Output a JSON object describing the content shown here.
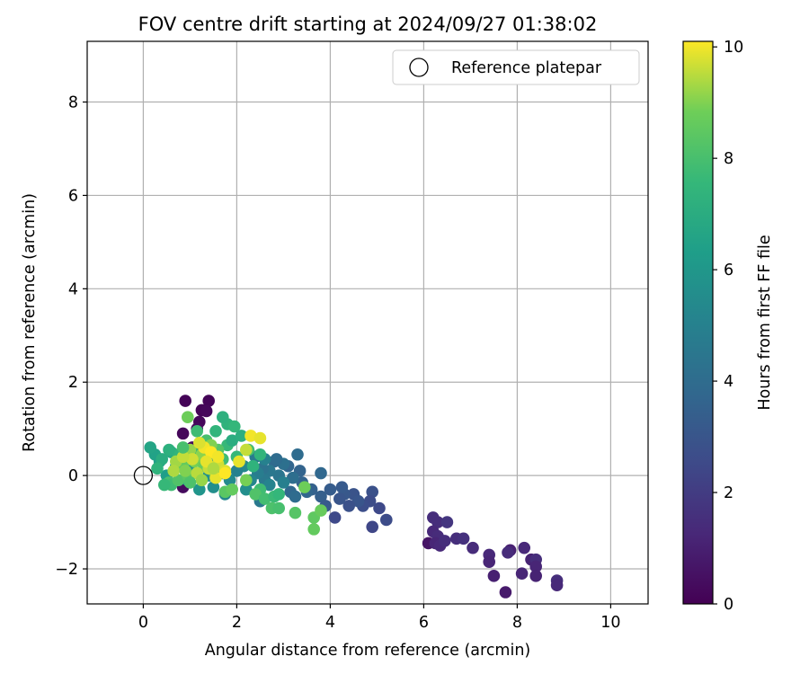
{
  "chart_data": {
    "type": "scatter",
    "title": "FOV centre drift starting at 2024/09/27 01:38:02",
    "xlabel": "Angular distance from reference (arcmin)",
    "ylabel": "Rotation from reference (arcmin)",
    "xlim": [
      -1.2,
      10.8
    ],
    "ylim": [
      -2.75,
      9.3
    ],
    "xticks": [
      0,
      2,
      4,
      6,
      8,
      10
    ],
    "yticks": [
      -2,
      0,
      2,
      4,
      6,
      8
    ],
    "xtick_labels": [
      "0",
      "2",
      "4",
      "6",
      "8",
      "10"
    ],
    "ytick_labels": [
      "−2",
      "0",
      "2",
      "4",
      "6",
      "8"
    ],
    "grid": true,
    "legend": {
      "position": "upper-right",
      "entries": [
        "Reference platepar"
      ]
    },
    "reference_point": {
      "label": "Reference platepar",
      "x": 0,
      "y": 0
    },
    "colorbar": {
      "label": "Hours from first FF file",
      "min": 0,
      "max": 10.1,
      "ticks": [
        0,
        2,
        4,
        6,
        8,
        10
      ],
      "tick_labels": [
        "0",
        "2",
        "4",
        "6",
        "8",
        "10"
      ],
      "colormap": "viridis"
    },
    "points": [
      {
        "x": 0.9,
        "y": 1.6,
        "c": 0.1
      },
      {
        "x": 1.4,
        "y": 1.6,
        "c": 0.1
      },
      {
        "x": 1.25,
        "y": 1.4,
        "c": 0.1
      },
      {
        "x": 1.35,
        "y": 1.38,
        "c": 0.2
      },
      {
        "x": 1.2,
        "y": 1.15,
        "c": 0.2
      },
      {
        "x": 0.85,
        "y": 0.9,
        "c": 0.2
      },
      {
        "x": 1.15,
        "y": 1.0,
        "c": 0.3
      },
      {
        "x": 1.05,
        "y": 0.6,
        "c": 0.3
      },
      {
        "x": 0.85,
        "y": -0.25,
        "c": 0.3
      },
      {
        "x": 1.25,
        "y": 0.3,
        "c": 0.4
      },
      {
        "x": 6.1,
        "y": -1.45,
        "c": 0.6
      },
      {
        "x": 7.75,
        "y": -2.5,
        "c": 0.8
      },
      {
        "x": 7.85,
        "y": -1.6,
        "c": 1.0
      },
      {
        "x": 7.5,
        "y": -2.15,
        "c": 1.0
      },
      {
        "x": 6.2,
        "y": -0.9,
        "c": 1.5
      },
      {
        "x": 6.3,
        "y": -1.0,
        "c": 1.5
      },
      {
        "x": 6.5,
        "y": -1.0,
        "c": 1.8
      },
      {
        "x": 6.2,
        "y": -1.2,
        "c": 1.3
      },
      {
        "x": 6.3,
        "y": -1.3,
        "c": 1.4
      },
      {
        "x": 6.25,
        "y": -1.45,
        "c": 1.2
      },
      {
        "x": 6.35,
        "y": -1.5,
        "c": 1.3
      },
      {
        "x": 6.45,
        "y": -1.4,
        "c": 1.5
      },
      {
        "x": 6.7,
        "y": -1.35,
        "c": 1.5
      },
      {
        "x": 6.85,
        "y": -1.35,
        "c": 1.6
      },
      {
        "x": 7.05,
        "y": -1.55,
        "c": 1.4
      },
      {
        "x": 7.4,
        "y": -1.7,
        "c": 1.3
      },
      {
        "x": 7.4,
        "y": -1.85,
        "c": 1.2
      },
      {
        "x": 7.8,
        "y": -1.65,
        "c": 1.4
      },
      {
        "x": 8.15,
        "y": -1.55,
        "c": 1.3
      },
      {
        "x": 8.3,
        "y": -1.8,
        "c": 1.1
      },
      {
        "x": 8.4,
        "y": -1.8,
        "c": 1.5
      },
      {
        "x": 8.4,
        "y": -1.95,
        "c": 1.2
      },
      {
        "x": 8.4,
        "y": -2.15,
        "c": 1.1
      },
      {
        "x": 8.1,
        "y": -2.1,
        "c": 1.2
      },
      {
        "x": 8.85,
        "y": -2.25,
        "c": 1.5
      },
      {
        "x": 8.85,
        "y": -2.35,
        "c": 1.3
      },
      {
        "x": 4.9,
        "y": -1.1,
        "c": 2.4
      },
      {
        "x": 5.2,
        "y": -0.95,
        "c": 2.6
      },
      {
        "x": 5.05,
        "y": -0.7,
        "c": 2.5
      },
      {
        "x": 4.9,
        "y": -0.35,
        "c": 2.8
      },
      {
        "x": 4.85,
        "y": -0.55,
        "c": 2.6
      },
      {
        "x": 4.7,
        "y": -0.65,
        "c": 2.7
      },
      {
        "x": 4.5,
        "y": -0.4,
        "c": 2.9
      },
      {
        "x": 4.6,
        "y": -0.55,
        "c": 3.0
      },
      {
        "x": 4.4,
        "y": -0.65,
        "c": 2.8
      },
      {
        "x": 4.3,
        "y": -0.4,
        "c": 3.1
      },
      {
        "x": 4.2,
        "y": -0.5,
        "c": 3.0
      },
      {
        "x": 4.0,
        "y": -0.3,
        "c": 3.3
      },
      {
        "x": 4.1,
        "y": -0.9,
        "c": 2.5
      },
      {
        "x": 3.8,
        "y": -0.45,
        "c": 3.4
      },
      {
        "x": 3.9,
        "y": -0.65,
        "c": 3.2
      },
      {
        "x": 4.25,
        "y": -0.25,
        "c": 3.2
      },
      {
        "x": 3.8,
        "y": 0.05,
        "c": 3.8
      },
      {
        "x": 3.6,
        "y": -0.3,
        "c": 3.5
      },
      {
        "x": 3.4,
        "y": -0.15,
        "c": 3.6
      },
      {
        "x": 3.3,
        "y": 0.45,
        "c": 4.0
      },
      {
        "x": 3.35,
        "y": 0.1,
        "c": 3.6
      },
      {
        "x": 3.2,
        "y": -0.05,
        "c": 4.1
      },
      {
        "x": 3.1,
        "y": 0.2,
        "c": 3.7
      },
      {
        "x": 3.15,
        "y": -0.35,
        "c": 3.8
      },
      {
        "x": 3.0,
        "y": 0.25,
        "c": 4.2
      },
      {
        "x": 2.9,
        "y": 0.0,
        "c": 4.4
      },
      {
        "x": 2.8,
        "y": 0.3,
        "c": 3.9
      },
      {
        "x": 2.85,
        "y": 0.35,
        "c": 4.0
      },
      {
        "x": 2.7,
        "y": 0.1,
        "c": 4.5
      },
      {
        "x": 2.6,
        "y": -0.1,
        "c": 4.6
      },
      {
        "x": 2.55,
        "y": 0.15,
        "c": 4.3
      },
      {
        "x": 2.45,
        "y": 0.05,
        "c": 4.8
      },
      {
        "x": 2.5,
        "y": -0.55,
        "c": 4.6
      },
      {
        "x": 2.6,
        "y": 0.35,
        "c": 5.0
      },
      {
        "x": 2.4,
        "y": 0.4,
        "c": 4.7
      },
      {
        "x": 2.3,
        "y": -0.1,
        "c": 5.2
      },
      {
        "x": 2.15,
        "y": 0.2,
        "c": 5.3
      },
      {
        "x": 2.0,
        "y": 0.1,
        "c": 5.0
      },
      {
        "x": 1.85,
        "y": -0.1,
        "c": 5.4
      },
      {
        "x": 1.7,
        "y": 0.05,
        "c": 5.5
      },
      {
        "x": 1.75,
        "y": -0.4,
        "c": 5.3
      },
      {
        "x": 1.5,
        "y": -0.25,
        "c": 5.6
      },
      {
        "x": 1.55,
        "y": 0.4,
        "c": 5.8
      },
      {
        "x": 1.2,
        "y": -0.3,
        "c": 5.9
      },
      {
        "x": 1.4,
        "y": 0.0,
        "c": 5.7
      },
      {
        "x": 1.0,
        "y": 0.1,
        "c": 6.0
      },
      {
        "x": 0.95,
        "y": -0.1,
        "c": 6.2
      },
      {
        "x": 0.7,
        "y": 0.2,
        "c": 6.1
      },
      {
        "x": 0.5,
        "y": 0.0,
        "c": 6.3
      },
      {
        "x": 0.25,
        "y": 0.45,
        "c": 6.5
      },
      {
        "x": 0.15,
        "y": 0.6,
        "c": 6.6
      },
      {
        "x": 0.35,
        "y": 0.3,
        "c": 6.4
      },
      {
        "x": 0.6,
        "y": 0.5,
        "c": 6.8
      },
      {
        "x": 3.0,
        "y": -0.15,
        "c": 4.9
      },
      {
        "x": 2.7,
        "y": -0.2,
        "c": 5.1
      },
      {
        "x": 3.25,
        "y": -0.45,
        "c": 4.0
      },
      {
        "x": 3.5,
        "y": -0.35,
        "c": 3.7
      },
      {
        "x": 2.2,
        "y": -0.3,
        "c": 5.6
      },
      {
        "x": 1.8,
        "y": 1.1,
        "c": 7.3
      },
      {
        "x": 1.95,
        "y": 1.05,
        "c": 7.5
      },
      {
        "x": 1.7,
        "y": 1.25,
        "c": 7.2
      },
      {
        "x": 1.55,
        "y": 0.95,
        "c": 7.4
      },
      {
        "x": 1.8,
        "y": 0.65,
        "c": 7.6
      },
      {
        "x": 1.7,
        "y": 0.35,
        "c": 7.8
      },
      {
        "x": 2.0,
        "y": 0.4,
        "c": 7.6
      },
      {
        "x": 1.9,
        "y": 0.75,
        "c": 7.0
      },
      {
        "x": 2.1,
        "y": 0.85,
        "c": 7.1
      },
      {
        "x": 2.25,
        "y": 0.55,
        "c": 7.9
      },
      {
        "x": 2.5,
        "y": 0.45,
        "c": 7.4
      },
      {
        "x": 2.35,
        "y": 0.2,
        "c": 7.3
      },
      {
        "x": 2.5,
        "y": -0.3,
        "c": 7.8
      },
      {
        "x": 2.4,
        "y": -0.4,
        "c": 8.2
      },
      {
        "x": 2.6,
        "y": -0.5,
        "c": 7.9
      },
      {
        "x": 2.8,
        "y": -0.45,
        "c": 7.7
      },
      {
        "x": 2.9,
        "y": -0.4,
        "c": 7.5
      },
      {
        "x": 2.75,
        "y": -0.7,
        "c": 8.1
      },
      {
        "x": 2.9,
        "y": -0.7,
        "c": 8.0
      },
      {
        "x": 3.25,
        "y": -0.8,
        "c": 8.3
      },
      {
        "x": 3.65,
        "y": -0.9,
        "c": 8.5
      },
      {
        "x": 3.65,
        "y": -1.15,
        "c": 8.6
      },
      {
        "x": 3.8,
        "y": -0.75,
        "c": 8.7
      },
      {
        "x": 3.45,
        "y": -0.25,
        "c": 8.8
      },
      {
        "x": 1.75,
        "y": -0.35,
        "c": 8.4
      },
      {
        "x": 1.9,
        "y": -0.3,
        "c": 8.6
      },
      {
        "x": 2.2,
        "y": -0.1,
        "c": 8.9
      },
      {
        "x": 0.95,
        "y": 1.25,
        "c": 8.8
      },
      {
        "x": 1.15,
        "y": 0.95,
        "c": 7.8
      },
      {
        "x": 1.35,
        "y": 0.75,
        "c": 8.0
      },
      {
        "x": 1.05,
        "y": 0.5,
        "c": 7.7
      },
      {
        "x": 0.75,
        "y": 0.45,
        "c": 7.4
      },
      {
        "x": 0.55,
        "y": 0.55,
        "c": 7.2
      },
      {
        "x": 0.4,
        "y": 0.35,
        "c": 7.0
      },
      {
        "x": 0.3,
        "y": 0.15,
        "c": 7.3
      },
      {
        "x": 0.55,
        "y": -0.15,
        "c": 8.0
      },
      {
        "x": 0.6,
        "y": -0.2,
        "c": 7.8
      },
      {
        "x": 0.75,
        "y": -0.1,
        "c": 8.2
      },
      {
        "x": 0.95,
        "y": 0.0,
        "c": 8.4
      },
      {
        "x": 0.85,
        "y": 0.25,
        "c": 8.6
      },
      {
        "x": 1.1,
        "y": 0.3,
        "c": 8.9
      },
      {
        "x": 1.3,
        "y": 0.2,
        "c": 8.7
      },
      {
        "x": 1.5,
        "y": 0.1,
        "c": 8.5
      },
      {
        "x": 1.6,
        "y": 0.55,
        "c": 8.3
      },
      {
        "x": 1.45,
        "y": 0.65,
        "c": 9.0
      },
      {
        "x": 1.25,
        "y": 0.45,
        "c": 9.1
      },
      {
        "x": 1.0,
        "y": 0.55,
        "c": 9.2
      },
      {
        "x": 0.7,
        "y": 0.3,
        "c": 9.3
      },
      {
        "x": 0.65,
        "y": 0.1,
        "c": 9.4
      },
      {
        "x": 0.9,
        "y": 0.1,
        "c": 9.0
      },
      {
        "x": 1.15,
        "y": 0.05,
        "c": 9.5
      },
      {
        "x": 1.4,
        "y": 0.15,
        "c": 9.6
      },
      {
        "x": 1.6,
        "y": 0.25,
        "c": 9.7
      },
      {
        "x": 1.75,
        "y": 0.1,
        "c": 9.8
      },
      {
        "x": 1.55,
        "y": -0.05,
        "c": 9.9
      },
      {
        "x": 1.3,
        "y": 0.6,
        "c": 10.0
      },
      {
        "x": 1.45,
        "y": 0.5,
        "c": 10.1
      },
      {
        "x": 1.2,
        "y": 0.7,
        "c": 9.8
      },
      {
        "x": 1.05,
        "y": 0.35,
        "c": 9.7
      },
      {
        "x": 0.85,
        "y": 0.4,
        "c": 9.6
      },
      {
        "x": 1.35,
        "y": 0.3,
        "c": 9.9
      },
      {
        "x": 1.6,
        "y": 0.4,
        "c": 10.0
      },
      {
        "x": 1.5,
        "y": 0.15,
        "c": 9.4
      },
      {
        "x": 1.25,
        "y": -0.1,
        "c": 9.2
      },
      {
        "x": 2.2,
        "y": 0.55,
        "c": 9.6
      },
      {
        "x": 2.05,
        "y": 0.3,
        "c": 9.9
      },
      {
        "x": 2.3,
        "y": 0.85,
        "c": 10.0
      },
      {
        "x": 2.5,
        "y": 0.8,
        "c": 9.9
      },
      {
        "x": 1.0,
        "y": -0.15,
        "c": 8.1
      },
      {
        "x": 0.45,
        "y": -0.2,
        "c": 7.6
      },
      {
        "x": 0.85,
        "y": 0.6,
        "c": 8.0
      },
      {
        "x": 1.75,
        "y": 0.05,
        "c": 10.1
      }
    ]
  }
}
